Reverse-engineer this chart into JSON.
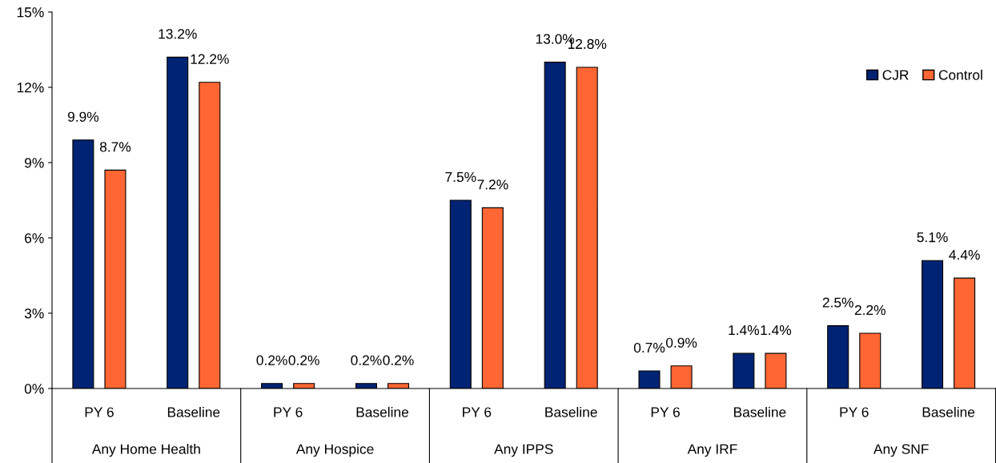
{
  "chart_data": {
    "type": "bar",
    "categories": [
      "PY 6",
      "Baseline",
      "PY 6",
      "Baseline",
      "PY 6",
      "Baseline",
      "PY 6",
      "Baseline",
      "PY 6",
      "Baseline"
    ],
    "annotations": [
      "Any Home Health",
      "Any Hospice",
      "Any IPPS",
      "Any IRF",
      "Any SNF"
    ],
    "series": [
      {
        "name": "CJR",
        "color": "#002373",
        "values": [
          9.9,
          13.2,
          0.2,
          0.2,
          7.5,
          13.0,
          0.7,
          1.4,
          2.5,
          5.1
        ],
        "value_labels": [
          "9.9%",
          "13.2%",
          "0.2%",
          "0.2%",
          "7.5%",
          "13.0%",
          "0.7%",
          "1.4%",
          "2.5%",
          "5.1%"
        ]
      },
      {
        "name": "Control",
        "color": "#ff6633",
        "values": [
          8.7,
          12.2,
          0.2,
          0.2,
          7.2,
          12.8,
          0.9,
          1.4,
          2.2,
          4.4
        ],
        "value_labels": [
          "8.7%",
          "12.2%",
          "0.2%",
          "0.2%",
          "7.2%",
          "12.8%",
          "0.9%",
          "1.4%",
          "2.2%",
          "4.4%"
        ]
      }
    ],
    "ylim": [
      0,
      15
    ],
    "yticks": [
      {
        "value": 0,
        "label": "0%"
      },
      {
        "value": 3,
        "label": "3%"
      },
      {
        "value": 6,
        "label": "6%"
      },
      {
        "value": 9,
        "label": "9%"
      },
      {
        "value": 12,
        "label": "12%"
      },
      {
        "value": 15,
        "label": "15%"
      }
    ],
    "grid": false,
    "legend": "top right"
  }
}
